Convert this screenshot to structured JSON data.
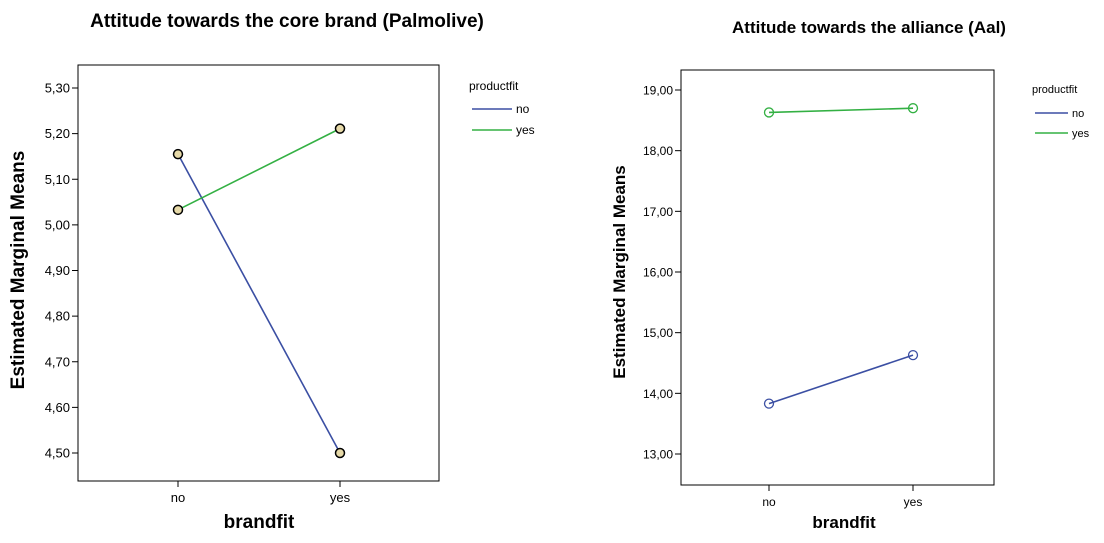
{
  "chart_data": [
    {
      "type": "line",
      "title": "Attitude towards the core brand (Palmolive)",
      "xlabel": "brandfit",
      "ylabel": "Estimated Marginal Means",
      "categories": [
        "no",
        "yes"
      ],
      "yticks": [
        "4,50",
        "4,60",
        "4,70",
        "4,80",
        "4,90",
        "5,00",
        "5,10",
        "5,20",
        "5,30"
      ],
      "ylim": [
        4.5,
        5.3
      ],
      "legend_title": "productfit",
      "legend_position": "top-right",
      "marker": "filled-circle",
      "series": [
        {
          "name": "no",
          "color": "#3b4fa3",
          "values": [
            5.155,
            4.5
          ]
        },
        {
          "name": "yes",
          "color": "#33b043",
          "values": [
            5.033,
            5.211
          ]
        }
      ]
    },
    {
      "type": "line",
      "title": "Attitude towards the alliance (Aal)",
      "xlabel": "brandfit",
      "ylabel": "Estimated Marginal Means",
      "categories": [
        "no",
        "yes"
      ],
      "yticks": [
        "13,00",
        "14,00",
        "15,00",
        "16,00",
        "17,00",
        "18,00",
        "19,00"
      ],
      "ylim": [
        13.0,
        19.0
      ],
      "legend_title": "productfit",
      "legend_position": "top-right",
      "marker": "open-circle",
      "series": [
        {
          "name": "no",
          "color": "#3b4fa3",
          "values": [
            13.83,
            14.63
          ]
        },
        {
          "name": "yes",
          "color": "#33b043",
          "values": [
            18.63,
            18.7
          ]
        }
      ]
    }
  ]
}
